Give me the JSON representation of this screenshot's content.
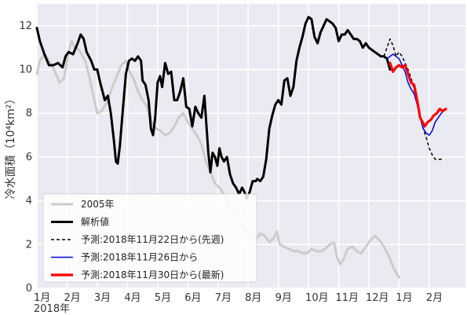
{
  "chart_data": {
    "type": "line",
    "ylabel": "冷水面積（10⁴km²）",
    "ylim": [
      0,
      13
    ],
    "yticks": [
      0,
      2,
      4,
      6,
      8,
      10,
      12
    ],
    "xlim": [
      0,
      14.2
    ],
    "xticks": [
      {
        "x": 0,
        "label": "1月"
      },
      {
        "x": 1,
        "label": "2月"
      },
      {
        "x": 2,
        "label": "3月"
      },
      {
        "x": 3,
        "label": "4月"
      },
      {
        "x": 4,
        "label": "5月"
      },
      {
        "x": 5,
        "label": "6月"
      },
      {
        "x": 6,
        "label": "7月"
      },
      {
        "x": 7,
        "label": "8月"
      },
      {
        "x": 8,
        "label": "9月"
      },
      {
        "x": 9,
        "label": "10月"
      },
      {
        "x": 10,
        "label": "11月"
      },
      {
        "x": 11,
        "label": "12月"
      },
      {
        "x": 12,
        "label": "1月"
      },
      {
        "x": 13,
        "label": "2月"
      }
    ],
    "xaxis_year": "2018年",
    "grid": true,
    "background": "#eaeaf2",
    "legend_position": "lower-left",
    "series": [
      {
        "name": "2005年",
        "color": "#cccccc",
        "style": "solid",
        "width": 3,
        "points": [
          [
            0,
            9.8
          ],
          [
            0.1,
            10.4
          ],
          [
            0.25,
            10.7
          ],
          [
            0.4,
            10.4
          ],
          [
            0.6,
            9.9
          ],
          [
            0.75,
            9.4
          ],
          [
            0.9,
            9.6
          ],
          [
            1.05,
            10.8
          ],
          [
            1.15,
            11.3
          ],
          [
            1.25,
            11.0
          ],
          [
            1.4,
            10.9
          ],
          [
            1.6,
            10.4
          ],
          [
            1.75,
            9.6
          ],
          [
            1.9,
            8.6
          ],
          [
            2.0,
            8.0
          ],
          [
            2.15,
            8.1
          ],
          [
            2.35,
            8.6
          ],
          [
            2.5,
            9.2
          ],
          [
            2.65,
            9.7
          ],
          [
            2.8,
            10.2
          ],
          [
            2.95,
            10.4
          ],
          [
            3.1,
            9.8
          ],
          [
            3.2,
            9.6
          ],
          [
            3.35,
            9.0
          ],
          [
            3.5,
            8.6
          ],
          [
            3.65,
            8.3
          ],
          [
            3.8,
            7.6
          ],
          [
            3.95,
            7.3
          ],
          [
            4.1,
            7.2
          ],
          [
            4.25,
            7.0
          ],
          [
            4.4,
            7.1
          ],
          [
            4.55,
            7.4
          ],
          [
            4.7,
            7.8
          ],
          [
            4.85,
            8.0
          ],
          [
            5.0,
            7.6
          ],
          [
            5.15,
            7.3
          ],
          [
            5.3,
            7.0
          ],
          [
            5.45,
            6.6
          ],
          [
            5.6,
            5.8
          ],
          [
            5.75,
            5.3
          ],
          [
            5.9,
            4.8
          ],
          [
            6.05,
            4.6
          ],
          [
            6.2,
            4.3
          ],
          [
            6.35,
            3.9
          ],
          [
            6.5,
            3.5
          ],
          [
            6.65,
            3.2
          ],
          [
            6.8,
            2.9
          ],
          [
            6.95,
            2.6
          ],
          [
            7.1,
            2.3
          ],
          [
            7.25,
            2.2
          ],
          [
            7.4,
            2.5
          ],
          [
            7.55,
            2.4
          ],
          [
            7.7,
            2.1
          ],
          [
            7.85,
            2.3
          ],
          [
            7.95,
            2.6
          ],
          [
            8.05,
            2.0
          ],
          [
            8.2,
            1.9
          ],
          [
            8.35,
            1.8
          ],
          [
            8.5,
            1.7
          ],
          [
            8.65,
            1.7
          ],
          [
            8.8,
            1.6
          ],
          [
            8.95,
            1.6
          ],
          [
            9.1,
            1.8
          ],
          [
            9.25,
            1.7
          ],
          [
            9.4,
            1.7
          ],
          [
            9.55,
            1.8
          ],
          [
            9.7,
            2.0
          ],
          [
            9.85,
            2.1
          ],
          [
            9.95,
            1.4
          ],
          [
            10.05,
            1.1
          ],
          [
            10.15,
            1.3
          ],
          [
            10.3,
            1.8
          ],
          [
            10.45,
            1.9
          ],
          [
            10.6,
            1.7
          ],
          [
            10.75,
            1.6
          ],
          [
            10.9,
            1.9
          ],
          [
            11.05,
            2.2
          ],
          [
            11.2,
            2.4
          ],
          [
            11.35,
            2.2
          ],
          [
            11.5,
            1.9
          ],
          [
            11.65,
            1.5
          ],
          [
            11.8,
            1.0
          ],
          [
            11.95,
            0.6
          ],
          [
            12.0,
            0.5
          ]
        ]
      },
      {
        "name": "解析値",
        "color": "#000000",
        "style": "solid",
        "width": 3,
        "points": [
          [
            0,
            11.9
          ],
          [
            0.1,
            11.3
          ],
          [
            0.25,
            10.7
          ],
          [
            0.4,
            10.2
          ],
          [
            0.55,
            10.2
          ],
          [
            0.7,
            10.3
          ],
          [
            0.85,
            10.1
          ],
          [
            0.95,
            10.6
          ],
          [
            1.05,
            10.8
          ],
          [
            1.2,
            10.7
          ],
          [
            1.35,
            11.2
          ],
          [
            1.45,
            11.6
          ],
          [
            1.55,
            11.4
          ],
          [
            1.65,
            10.8
          ],
          [
            1.8,
            10.4
          ],
          [
            1.9,
            10.0
          ],
          [
            2.0,
            10.0
          ],
          [
            2.1,
            9.4
          ],
          [
            2.25,
            8.6
          ],
          [
            2.35,
            8.8
          ],
          [
            2.45,
            8.0
          ],
          [
            2.55,
            6.8
          ],
          [
            2.62,
            5.8
          ],
          [
            2.68,
            5.7
          ],
          [
            2.75,
            6.5
          ],
          [
            2.85,
            8.2
          ],
          [
            2.95,
            9.8
          ],
          [
            3.05,
            10.4
          ],
          [
            3.15,
            10.5
          ],
          [
            3.25,
            10.4
          ],
          [
            3.35,
            10.6
          ],
          [
            3.45,
            10.4
          ],
          [
            3.5,
            9.5
          ],
          [
            3.6,
            9.3
          ],
          [
            3.7,
            8.6
          ],
          [
            3.78,
            7.3
          ],
          [
            3.85,
            7.0
          ],
          [
            3.92,
            7.8
          ],
          [
            4.0,
            9.4
          ],
          [
            4.08,
            9.7
          ],
          [
            4.15,
            9.2
          ],
          [
            4.25,
            10.3
          ],
          [
            4.35,
            9.8
          ],
          [
            4.45,
            9.9
          ],
          [
            4.55,
            8.6
          ],
          [
            4.65,
            8.6
          ],
          [
            4.75,
            9.0
          ],
          [
            4.85,
            9.6
          ],
          [
            4.95,
            8.3
          ],
          [
            5.05,
            8.2
          ],
          [
            5.15,
            7.4
          ],
          [
            5.25,
            8.3
          ],
          [
            5.35,
            8.0
          ],
          [
            5.45,
            7.8
          ],
          [
            5.55,
            8.8
          ],
          [
            5.62,
            7.4
          ],
          [
            5.68,
            6.2
          ],
          [
            5.75,
            5.3
          ],
          [
            5.82,
            6.2
          ],
          [
            5.9,
            6.0
          ],
          [
            5.98,
            5.6
          ],
          [
            6.05,
            6.4
          ],
          [
            6.12,
            6.0
          ],
          [
            6.2,
            5.8
          ],
          [
            6.3,
            6.0
          ],
          [
            6.4,
            5.2
          ],
          [
            6.5,
            4.8
          ],
          [
            6.6,
            4.6
          ],
          [
            6.7,
            4.3
          ],
          [
            6.8,
            4.6
          ],
          [
            6.88,
            4.4
          ],
          [
            6.95,
            4.1
          ],
          [
            7.05,
            4.4
          ],
          [
            7.15,
            4.9
          ],
          [
            7.25,
            4.9
          ],
          [
            7.3,
            5.0
          ],
          [
            7.4,
            4.9
          ],
          [
            7.5,
            5.1
          ],
          [
            7.6,
            5.9
          ],
          [
            7.7,
            7.3
          ],
          [
            7.8,
            7.9
          ],
          [
            7.9,
            8.4
          ],
          [
            8.0,
            8.6
          ],
          [
            8.1,
            8.4
          ],
          [
            8.2,
            9.5
          ],
          [
            8.3,
            9.6
          ],
          [
            8.4,
            8.8
          ],
          [
            8.5,
            9.2
          ],
          [
            8.6,
            10.4
          ],
          [
            8.7,
            11.0
          ],
          [
            8.8,
            11.5
          ],
          [
            8.9,
            12.1
          ],
          [
            9.0,
            12.4
          ],
          [
            9.1,
            12.3
          ],
          [
            9.2,
            11.5
          ],
          [
            9.3,
            11.2
          ],
          [
            9.4,
            11.7
          ],
          [
            9.5,
            12.0
          ],
          [
            9.6,
            12.3
          ],
          [
            9.7,
            12.2
          ],
          [
            9.8,
            12.1
          ],
          [
            9.9,
            11.9
          ],
          [
            10.0,
            11.3
          ],
          [
            10.1,
            11.6
          ],
          [
            10.2,
            11.6
          ],
          [
            10.3,
            11.8
          ],
          [
            10.4,
            11.6
          ],
          [
            10.5,
            11.4
          ],
          [
            10.6,
            11.4
          ],
          [
            10.7,
            11.3
          ],
          [
            10.8,
            11.0
          ],
          [
            10.9,
            11.2
          ],
          [
            11.0,
            11.0
          ],
          [
            11.1,
            10.9
          ],
          [
            11.2,
            10.8
          ],
          [
            11.3,
            10.7
          ],
          [
            11.4,
            10.6
          ],
          [
            11.5,
            10.6
          ],
          [
            11.6,
            10.5
          ],
          [
            11.7,
            10.0
          ]
        ]
      },
      {
        "name": "予測:2018年11月22日から(先週)",
        "color": "#000000",
        "style": "dashed",
        "width": 1.5,
        "points": [
          [
            11.5,
            10.6
          ],
          [
            11.6,
            11.0
          ],
          [
            11.7,
            11.4
          ],
          [
            11.8,
            11.1
          ],
          [
            11.9,
            10.6
          ],
          [
            12.0,
            10.8
          ],
          [
            12.1,
            10.6
          ],
          [
            12.2,
            10.3
          ],
          [
            12.3,
            10.0
          ],
          [
            12.4,
            9.6
          ],
          [
            12.5,
            9.1
          ],
          [
            12.6,
            8.4
          ],
          [
            12.7,
            7.8
          ],
          [
            12.8,
            7.3
          ],
          [
            12.9,
            6.9
          ],
          [
            13.0,
            6.4
          ],
          [
            13.1,
            6.1
          ],
          [
            13.2,
            5.9
          ],
          [
            13.3,
            5.9
          ],
          [
            13.4,
            5.9
          ],
          [
            13.45,
            6.0
          ]
        ]
      },
      {
        "name": "予測:2018年11月26日から",
        "color": "#0000dd",
        "style": "solid",
        "width": 1.5,
        "points": [
          [
            11.6,
            10.5
          ],
          [
            11.7,
            10.6
          ],
          [
            11.8,
            10.7
          ],
          [
            11.9,
            10.6
          ],
          [
            12.0,
            10.5
          ],
          [
            12.1,
            10.2
          ],
          [
            12.2,
            9.9
          ],
          [
            12.3,
            9.4
          ],
          [
            12.4,
            9.1
          ],
          [
            12.5,
            8.9
          ],
          [
            12.6,
            8.4
          ],
          [
            12.7,
            7.8
          ],
          [
            12.8,
            7.3
          ],
          [
            12.9,
            7.1
          ],
          [
            13.0,
            7.0
          ],
          [
            13.1,
            7.2
          ],
          [
            13.2,
            7.6
          ],
          [
            13.3,
            7.8
          ],
          [
            13.4,
            8.0
          ],
          [
            13.55,
            8.2
          ]
        ]
      },
      {
        "name": "予測:2018年11月30日から(最新)",
        "color": "#ff0000",
        "style": "solid",
        "width": 3.2,
        "points": [
          [
            11.7,
            10.3
          ],
          [
            11.8,
            9.9
          ],
          [
            11.9,
            10.1
          ],
          [
            12.0,
            10.2
          ],
          [
            12.1,
            10.1
          ],
          [
            12.2,
            10.2
          ],
          [
            12.3,
            9.8
          ],
          [
            12.4,
            9.4
          ],
          [
            12.5,
            9.3
          ],
          [
            12.6,
            8.6
          ],
          [
            12.7,
            7.8
          ],
          [
            12.78,
            7.6
          ],
          [
            12.85,
            7.4
          ],
          [
            12.95,
            7.6
          ],
          [
            13.05,
            7.7
          ],
          [
            13.15,
            7.9
          ],
          [
            13.25,
            8.0
          ],
          [
            13.35,
            8.2
          ],
          [
            13.45,
            8.1
          ],
          [
            13.55,
            8.2
          ]
        ]
      }
    ]
  }
}
